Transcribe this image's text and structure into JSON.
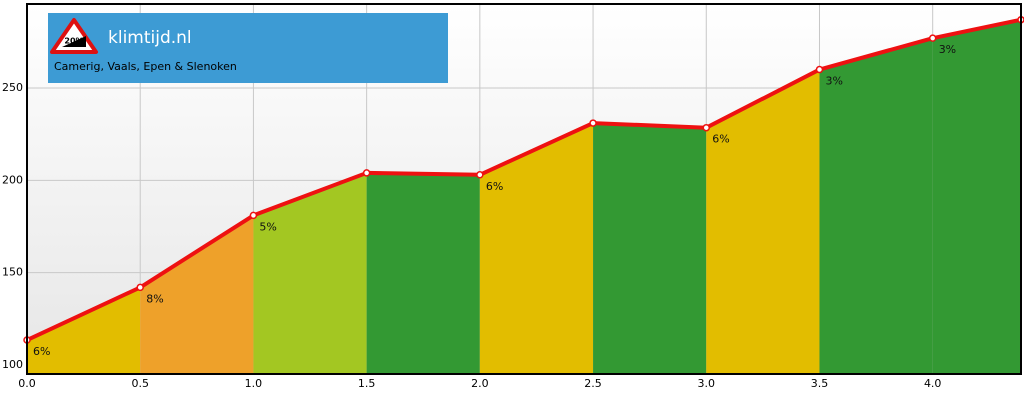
{
  "chart_data": {
    "type": "area",
    "title": "klimtijd.nl",
    "subtitle": "Camerig, Vaals, Epen & Slenoken",
    "logo_text": "20%",
    "x": [
      0,
      0.5,
      1.0,
      1.5,
      2.0,
      2.5,
      3.0,
      3.5,
      4.0,
      4.39
    ],
    "values": [
      113.5,
      142,
      181,
      204,
      203,
      231,
      228.5,
      260,
      277,
      287
    ],
    "line_color": "#ee1111",
    "segments": {
      "values": [
        6,
        8,
        5,
        null,
        6,
        null,
        6,
        3,
        3
      ],
      "value_labels": [
        "6%",
        "8%",
        "5%",
        null,
        "6%",
        null,
        "6%",
        "3%",
        "3%"
      ],
      "colors": [
        "#e2bd00",
        "#eea12a",
        "#a3c722",
        "#339933",
        "#e2bd00",
        "#339933",
        "#e2bd00",
        "#339933",
        "#339933"
      ]
    },
    "xlim": [
      0,
      4.39
    ],
    "ylim": [
      95.1,
      295.5
    ],
    "xticks": [
      {
        "value": 0,
        "label": "0.0"
      },
      0.5,
      {
        "value": 1,
        "label": "1.0"
      },
      1.5,
      {
        "value": 2,
        "label": "2.0"
      },
      2.5,
      {
        "value": 3,
        "label": "3.0"
      },
      3.5,
      {
        "value": 4,
        "label": "4.0"
      }
    ],
    "yticks": [
      100,
      150,
      200,
      250
    ],
    "grid": true
  }
}
